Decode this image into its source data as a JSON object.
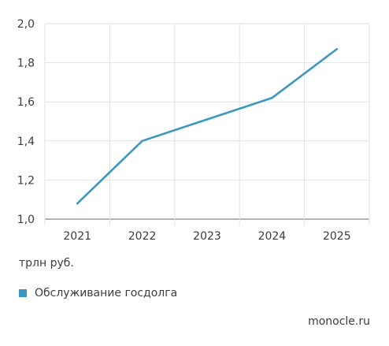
{
  "chart_data": {
    "type": "line",
    "x": [
      "2021",
      "2022",
      "2023",
      "2024",
      "2025"
    ],
    "series": [
      {
        "name": "Обслуживание госдолга",
        "values": [
          1.08,
          1.4,
          1.51,
          1.62,
          1.87
        ],
        "color": "#3a97c2"
      }
    ],
    "ylim": [
      1.0,
      2.0
    ],
    "yticks": [
      "1,0",
      "1,2",
      "1,4",
      "1,6",
      "1,8",
      "2,0"
    ],
    "ytick_values": [
      1.0,
      1.2,
      1.4,
      1.6,
      1.8,
      2.0
    ],
    "ylabel": "трлн руб.",
    "grid": true,
    "legend_position": "bottom-left"
  },
  "source": "monocle.ru"
}
